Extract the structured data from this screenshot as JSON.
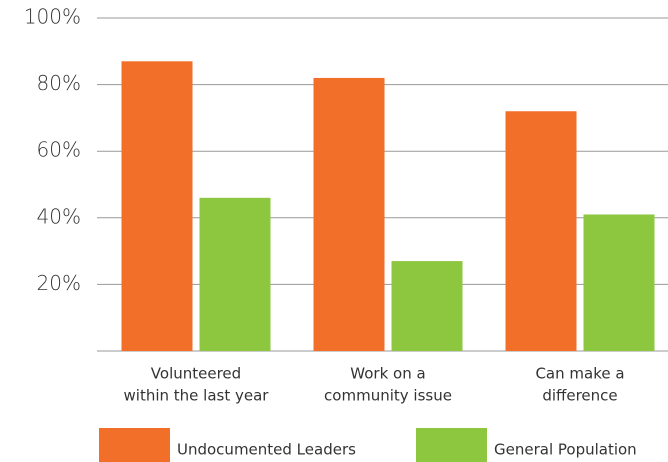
{
  "chart_data": {
    "type": "bar",
    "categories": [
      [
        "Volunteered",
        "within the last year"
      ],
      [
        "Work on a",
        "community issue"
      ],
      [
        "Can make a",
        "difference"
      ]
    ],
    "series": [
      {
        "name": "Undocumented Leaders",
        "color": "#f26f2a",
        "values": [
          87,
          82,
          72
        ]
      },
      {
        "name": "General Population",
        "color": "#8dc63f",
        "values": [
          46,
          27,
          41
        ]
      }
    ],
    "ylim": [
      0,
      100
    ],
    "yticks": [
      {
        "value": 20,
        "label": "20%"
      },
      {
        "value": 40,
        "label": "40%"
      },
      {
        "value": 60,
        "label": "60%"
      },
      {
        "value": 80,
        "label": "80%"
      },
      {
        "value": 100,
        "label": "100%"
      }
    ],
    "grid": true
  }
}
